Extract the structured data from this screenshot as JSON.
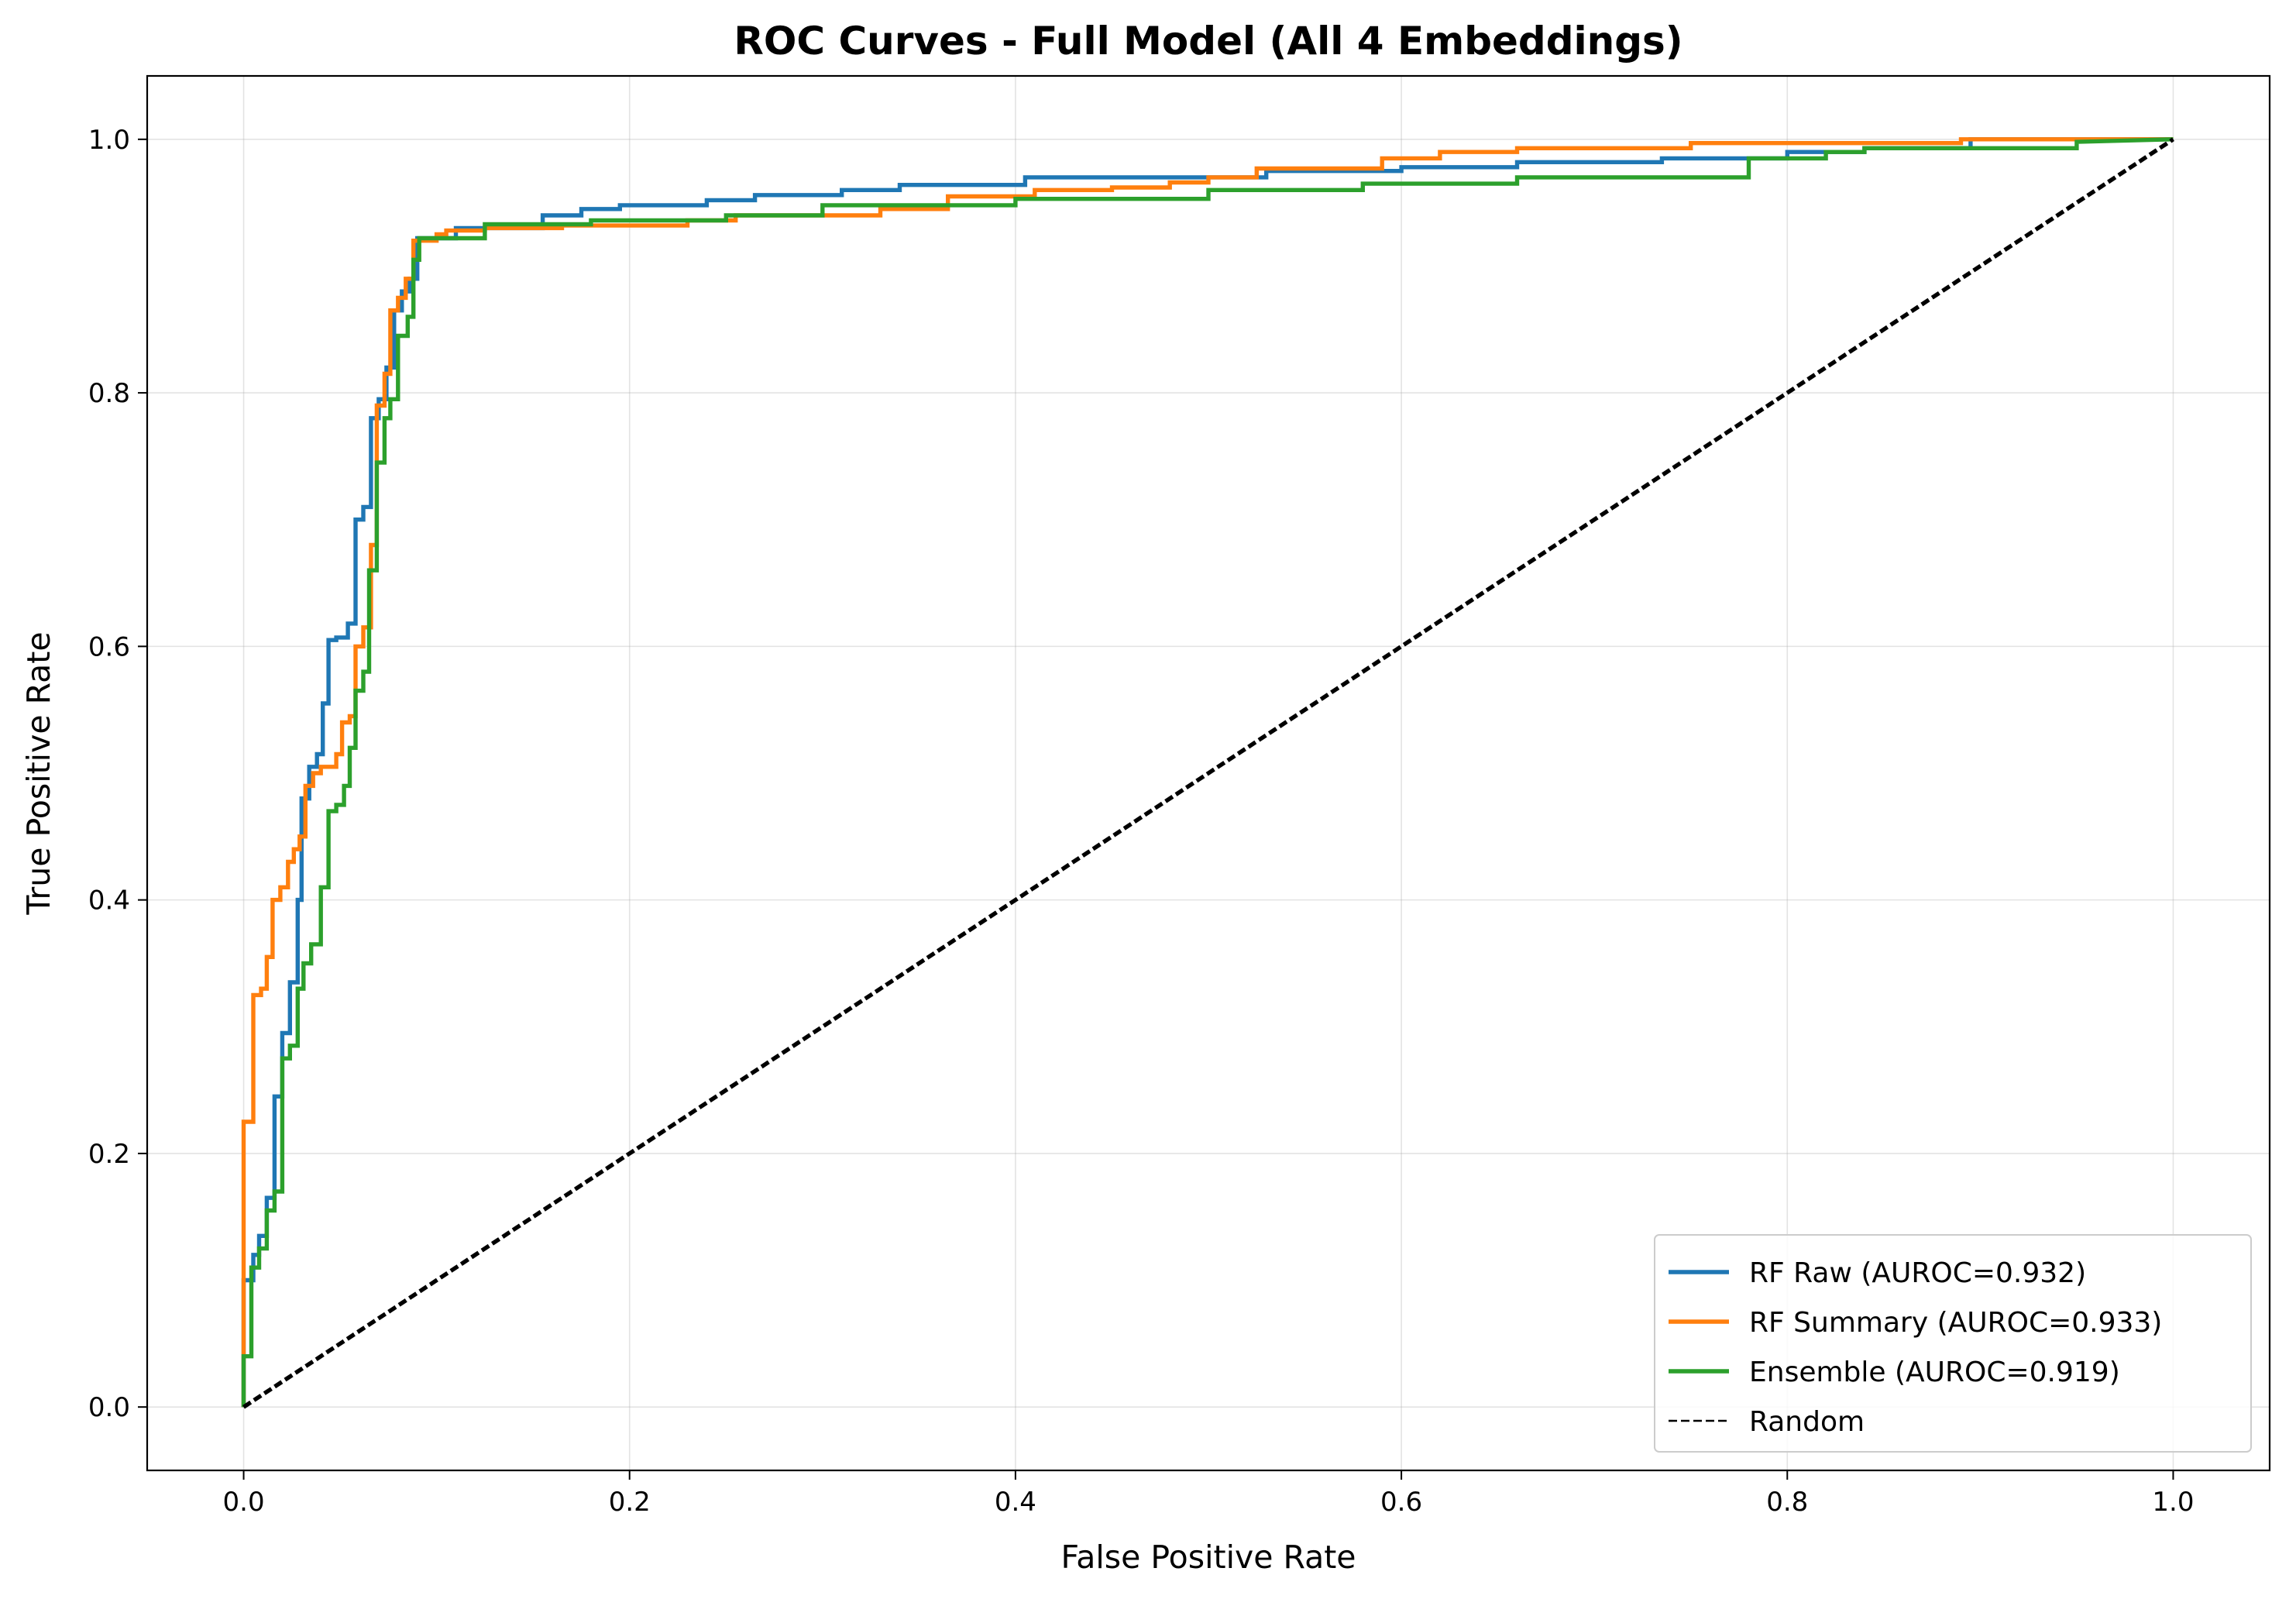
{
  "chart_data": {
    "type": "line",
    "title": "ROC Curves - Full Model (All 4 Embeddings)",
    "xlabel": "False Positive Rate",
    "ylabel": "True Positive Rate",
    "xlim": [
      -0.05,
      1.05
    ],
    "ylim": [
      -0.05,
      1.05
    ],
    "x_ticks": [
      "0.0",
      "0.2",
      "0.4",
      "0.6",
      "0.8",
      "1.0"
    ],
    "y_ticks": [
      "0.0",
      "0.2",
      "0.4",
      "0.6",
      "0.8",
      "1.0"
    ],
    "grid": true,
    "legend_position": "bottom-right",
    "series": [
      {
        "name": "RF Raw (AUROC=0.932)",
        "color": "#1f77b4",
        "style": "solid",
        "points": [
          [
            0,
            0
          ],
          [
            0,
            0.04
          ],
          [
            0,
            0.1
          ],
          [
            0.005,
            0.1
          ],
          [
            0.005,
            0.12
          ],
          [
            0.008,
            0.12
          ],
          [
            0.008,
            0.135
          ],
          [
            0.012,
            0.135
          ],
          [
            0.012,
            0.165
          ],
          [
            0.016,
            0.165
          ],
          [
            0.016,
            0.245
          ],
          [
            0.02,
            0.245
          ],
          [
            0.02,
            0.295
          ],
          [
            0.024,
            0.295
          ],
          [
            0.024,
            0.335
          ],
          [
            0.028,
            0.335
          ],
          [
            0.028,
            0.4
          ],
          [
            0.03,
            0.4
          ],
          [
            0.03,
            0.48
          ],
          [
            0.034,
            0.48
          ],
          [
            0.034,
            0.505
          ],
          [
            0.038,
            0.505
          ],
          [
            0.038,
            0.515
          ],
          [
            0.041,
            0.515
          ],
          [
            0.041,
            0.555
          ],
          [
            0.044,
            0.555
          ],
          [
            0.044,
            0.605
          ],
          [
            0.048,
            0.605
          ],
          [
            0.048,
            0.607
          ],
          [
            0.054,
            0.607
          ],
          [
            0.054,
            0.618
          ],
          [
            0.058,
            0.618
          ],
          [
            0.058,
            0.7
          ],
          [
            0.062,
            0.7
          ],
          [
            0.062,
            0.71
          ],
          [
            0.066,
            0.71
          ],
          [
            0.066,
            0.78
          ],
          [
            0.07,
            0.78
          ],
          [
            0.07,
            0.795
          ],
          [
            0.074,
            0.795
          ],
          [
            0.074,
            0.82
          ],
          [
            0.078,
            0.82
          ],
          [
            0.078,
            0.865
          ],
          [
            0.082,
            0.865
          ],
          [
            0.082,
            0.88
          ],
          [
            0.086,
            0.88
          ],
          [
            0.086,
            0.89
          ],
          [
            0.09,
            0.89
          ],
          [
            0.09,
            0.922
          ],
          [
            0.11,
            0.922
          ],
          [
            0.11,
            0.93
          ],
          [
            0.155,
            0.93
          ],
          [
            0.155,
            0.94
          ],
          [
            0.175,
            0.94
          ],
          [
            0.175,
            0.945
          ],
          [
            0.195,
            0.945
          ],
          [
            0.195,
            0.948
          ],
          [
            0.24,
            0.948
          ],
          [
            0.24,
            0.952
          ],
          [
            0.265,
            0.952
          ],
          [
            0.265,
            0.956
          ],
          [
            0.31,
            0.956
          ],
          [
            0.31,
            0.96
          ],
          [
            0.34,
            0.96
          ],
          [
            0.34,
            0.964
          ],
          [
            0.405,
            0.964
          ],
          [
            0.405,
            0.97
          ],
          [
            0.5,
            0.97
          ],
          [
            0.5,
            0.97
          ],
          [
            0.53,
            0.97
          ],
          [
            0.53,
            0.975
          ],
          [
            0.6,
            0.975
          ],
          [
            0.6,
            0.978
          ],
          [
            0.66,
            0.978
          ],
          [
            0.66,
            0.982
          ],
          [
            0.735,
            0.982
          ],
          [
            0.735,
            0.985
          ],
          [
            0.8,
            0.985
          ],
          [
            0.8,
            0.99
          ],
          [
            0.84,
            0.99
          ],
          [
            0.84,
            0.993
          ],
          [
            0.895,
            0.993
          ],
          [
            0.895,
            1.0
          ],
          [
            1.0,
            1.0
          ]
        ]
      },
      {
        "name": "RF Summary (AUROC=0.933)",
        "color": "#ff7f0e",
        "style": "solid",
        "points": [
          [
            0,
            0
          ],
          [
            0,
            0.045
          ],
          [
            0,
            0.225
          ],
          [
            0.005,
            0.225
          ],
          [
            0.005,
            0.325
          ],
          [
            0.009,
            0.325
          ],
          [
            0.009,
            0.33
          ],
          [
            0.012,
            0.33
          ],
          [
            0.012,
            0.355
          ],
          [
            0.015,
            0.355
          ],
          [
            0.015,
            0.4
          ],
          [
            0.019,
            0.4
          ],
          [
            0.019,
            0.41
          ],
          [
            0.023,
            0.41
          ],
          [
            0.023,
            0.43
          ],
          [
            0.026,
            0.43
          ],
          [
            0.026,
            0.44
          ],
          [
            0.029,
            0.44
          ],
          [
            0.029,
            0.45
          ],
          [
            0.032,
            0.45
          ],
          [
            0.032,
            0.49
          ],
          [
            0.036,
            0.49
          ],
          [
            0.036,
            0.5
          ],
          [
            0.04,
            0.5
          ],
          [
            0.04,
            0.505
          ],
          [
            0.048,
            0.505
          ],
          [
            0.048,
            0.515
          ],
          [
            0.051,
            0.515
          ],
          [
            0.051,
            0.54
          ],
          [
            0.055,
            0.54
          ],
          [
            0.055,
            0.545
          ],
          [
            0.058,
            0.545
          ],
          [
            0.058,
            0.6
          ],
          [
            0.062,
            0.6
          ],
          [
            0.062,
            0.615
          ],
          [
            0.066,
            0.615
          ],
          [
            0.066,
            0.68
          ],
          [
            0.069,
            0.68
          ],
          [
            0.069,
            0.79
          ],
          [
            0.073,
            0.79
          ],
          [
            0.073,
            0.815
          ],
          [
            0.076,
            0.815
          ],
          [
            0.076,
            0.865
          ],
          [
            0.08,
            0.865
          ],
          [
            0.08,
            0.875
          ],
          [
            0.084,
            0.875
          ],
          [
            0.084,
            0.89
          ],
          [
            0.088,
            0.89
          ],
          [
            0.088,
            0.92
          ],
          [
            0.1,
            0.92
          ],
          [
            0.1,
            0.925
          ],
          [
            0.105,
            0.925
          ],
          [
            0.105,
            0.928
          ],
          [
            0.125,
            0.928
          ],
          [
            0.125,
            0.93
          ],
          [
            0.165,
            0.93
          ],
          [
            0.165,
            0.932
          ],
          [
            0.23,
            0.932
          ],
          [
            0.23,
            0.936
          ],
          [
            0.255,
            0.936
          ],
          [
            0.255,
            0.94
          ],
          [
            0.33,
            0.94
          ],
          [
            0.33,
            0.945
          ],
          [
            0.365,
            0.945
          ],
          [
            0.365,
            0.955
          ],
          [
            0.41,
            0.955
          ],
          [
            0.41,
            0.96
          ],
          [
            0.45,
            0.96
          ],
          [
            0.45,
            0.962
          ],
          [
            0.48,
            0.962
          ],
          [
            0.48,
            0.966
          ],
          [
            0.5,
            0.966
          ],
          [
            0.5,
            0.97
          ],
          [
            0.525,
            0.97
          ],
          [
            0.525,
            0.977
          ],
          [
            0.59,
            0.977
          ],
          [
            0.59,
            0.985
          ],
          [
            0.62,
            0.985
          ],
          [
            0.62,
            0.99
          ],
          [
            0.66,
            0.99
          ],
          [
            0.66,
            0.993
          ],
          [
            0.75,
            0.993
          ],
          [
            0.75,
            0.997
          ],
          [
            0.89,
            0.997
          ],
          [
            0.89,
            1.0
          ],
          [
            1.0,
            1.0
          ]
        ]
      },
      {
        "name": "Ensemble (AUROC=0.919)",
        "color": "#2ca02c",
        "style": "solid",
        "points": [
          [
            0,
            0
          ],
          [
            0,
            0.04
          ],
          [
            0.004,
            0.04
          ],
          [
            0.004,
            0.11
          ],
          [
            0.008,
            0.11
          ],
          [
            0.008,
            0.125
          ],
          [
            0.012,
            0.125
          ],
          [
            0.012,
            0.155
          ],
          [
            0.016,
            0.155
          ],
          [
            0.016,
            0.17
          ],
          [
            0.02,
            0.17
          ],
          [
            0.02,
            0.275
          ],
          [
            0.024,
            0.275
          ],
          [
            0.024,
            0.285
          ],
          [
            0.028,
            0.285
          ],
          [
            0.028,
            0.33
          ],
          [
            0.031,
            0.33
          ],
          [
            0.031,
            0.35
          ],
          [
            0.035,
            0.35
          ],
          [
            0.035,
            0.365
          ],
          [
            0.04,
            0.365
          ],
          [
            0.04,
            0.41
          ],
          [
            0.044,
            0.41
          ],
          [
            0.044,
            0.47
          ],
          [
            0.048,
            0.47
          ],
          [
            0.048,
            0.475
          ],
          [
            0.052,
            0.475
          ],
          [
            0.052,
            0.49
          ],
          [
            0.055,
            0.49
          ],
          [
            0.055,
            0.52
          ],
          [
            0.058,
            0.52
          ],
          [
            0.058,
            0.565
          ],
          [
            0.062,
            0.565
          ],
          [
            0.062,
            0.58
          ],
          [
            0.065,
            0.58
          ],
          [
            0.065,
            0.66
          ],
          [
            0.069,
            0.66
          ],
          [
            0.069,
            0.745
          ],
          [
            0.073,
            0.745
          ],
          [
            0.073,
            0.78
          ],
          [
            0.076,
            0.78
          ],
          [
            0.076,
            0.795
          ],
          [
            0.08,
            0.795
          ],
          [
            0.08,
            0.845
          ],
          [
            0.085,
            0.845
          ],
          [
            0.085,
            0.86
          ],
          [
            0.088,
            0.86
          ],
          [
            0.088,
            0.905
          ],
          [
            0.091,
            0.905
          ],
          [
            0.091,
            0.922
          ],
          [
            0.125,
            0.922
          ],
          [
            0.125,
            0.933
          ],
          [
            0.18,
            0.933
          ],
          [
            0.18,
            0.936
          ],
          [
            0.25,
            0.936
          ],
          [
            0.25,
            0.94
          ],
          [
            0.3,
            0.94
          ],
          [
            0.3,
            0.948
          ],
          [
            0.4,
            0.948
          ],
          [
            0.4,
            0.953
          ],
          [
            0.5,
            0.953
          ],
          [
            0.5,
            0.96
          ],
          [
            0.58,
            0.96
          ],
          [
            0.58,
            0.965
          ],
          [
            0.66,
            0.965
          ],
          [
            0.66,
            0.97
          ],
          [
            0.78,
            0.97
          ],
          [
            0.78,
            0.985
          ],
          [
            0.82,
            0.985
          ],
          [
            0.82,
            0.99
          ],
          [
            0.84,
            0.99
          ],
          [
            0.84,
            0.993
          ],
          [
            0.95,
            0.993
          ],
          [
            0.95,
            0.998
          ],
          [
            1.0,
            1.0
          ]
        ]
      },
      {
        "name": "Random",
        "color": "#000000",
        "style": "dashed",
        "points": [
          [
            0,
            0
          ],
          [
            1,
            1
          ]
        ]
      }
    ]
  }
}
